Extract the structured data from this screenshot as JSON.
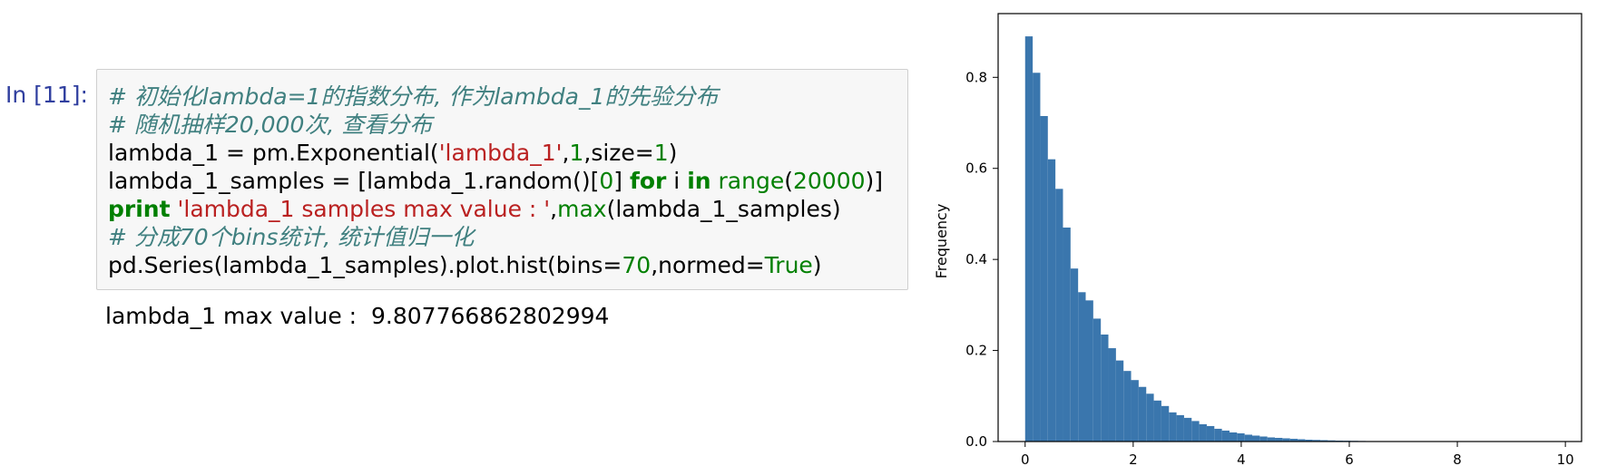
{
  "cell": {
    "prompt": "In [11]:",
    "code_lines": [
      [
        {
          "text": "# 初始化lambda=1的指数分布, 作为lambda_1的先验分布",
          "kind": "comment"
        }
      ],
      [
        {
          "text": "# 随机抽样20,000次, 查看分布",
          "kind": "comment"
        }
      ],
      [
        {
          "text": "lambda_1 = pm.Exponential(",
          "kind": "plain"
        },
        {
          "text": "'lambda_1'",
          "kind": "string"
        },
        {
          "text": ",",
          "kind": "plain"
        },
        {
          "text": "1",
          "kind": "num"
        },
        {
          "text": ",size=",
          "kind": "plain"
        },
        {
          "text": "1",
          "kind": "num"
        },
        {
          "text": ")",
          "kind": "plain"
        }
      ],
      [
        {
          "text": "lambda_1_samples = [lambda_1.random()[",
          "kind": "plain"
        },
        {
          "text": "0",
          "kind": "num"
        },
        {
          "text": "] ",
          "kind": "plain"
        },
        {
          "text": "for",
          "kind": "kw"
        },
        {
          "text": " i ",
          "kind": "plain"
        },
        {
          "text": "in",
          "kind": "kw"
        },
        {
          "text": " ",
          "kind": "plain"
        },
        {
          "text": "range",
          "kind": "builtin"
        },
        {
          "text": "(",
          "kind": "plain"
        },
        {
          "text": "20000",
          "kind": "num"
        },
        {
          "text": ")]",
          "kind": "plain"
        }
      ],
      [
        {
          "text": "print",
          "kind": "kw"
        },
        {
          "text": " ",
          "kind": "plain"
        },
        {
          "text": "'lambda_1 samples max value : '",
          "kind": "string"
        },
        {
          "text": ",",
          "kind": "plain"
        },
        {
          "text": "max",
          "kind": "builtin"
        },
        {
          "text": "(lambda_1_samples)",
          "kind": "plain"
        }
      ],
      [
        {
          "text": "# 分成70个bins统计, 统计值归一化",
          "kind": "comment"
        }
      ],
      [
        {
          "text": "pd.Series(lambda_1_samples).plot.hist(bins=",
          "kind": "plain"
        },
        {
          "text": "70",
          "kind": "num"
        },
        {
          "text": ",normed=",
          "kind": "plain"
        },
        {
          "text": "True",
          "kind": "builtin"
        },
        {
          "text": ")",
          "kind": "plain"
        }
      ]
    ],
    "output": "lambda_1 max value :  9.807766862802994"
  },
  "colors": {
    "prompt": "#303f9f",
    "comment": "#408080",
    "string": "#ba2121",
    "number": "#008000",
    "keyword": "#008000",
    "bar": "#3a76ad"
  },
  "chart_data": {
    "type": "bar",
    "title": "",
    "xlabel": "",
    "ylabel": "Frequency",
    "xlim": [
      -0.5,
      10.3
    ],
    "ylim": [
      0,
      0.94
    ],
    "xticks": [
      0,
      2,
      4,
      6,
      8,
      10
    ],
    "yticks": [
      0.0,
      0.2,
      0.4,
      0.6,
      0.8
    ],
    "ytick_labels": [
      "0.0",
      "0.2",
      "0.4",
      "0.6",
      "0.8"
    ],
    "xtick_labels": [
      "0",
      "2",
      "4",
      "6",
      "8",
      "10"
    ],
    "grid": false,
    "bin_start": 0.0,
    "bin_width": 0.1401,
    "values": [
      0.89,
      0.81,
      0.715,
      0.62,
      0.555,
      0.47,
      0.38,
      0.328,
      0.31,
      0.27,
      0.235,
      0.205,
      0.178,
      0.155,
      0.135,
      0.12,
      0.105,
      0.09,
      0.078,
      0.064,
      0.058,
      0.052,
      0.045,
      0.038,
      0.034,
      0.028,
      0.024,
      0.02,
      0.018,
      0.015,
      0.013,
      0.011,
      0.009,
      0.008,
      0.007,
      0.006,
      0.005,
      0.004,
      0.0035,
      0.003,
      0.0025,
      0.002,
      0.0018,
      0.0015,
      0.0012,
      0.001,
      0.0008,
      0.0007,
      0.0006,
      0.0005,
      0.0004,
      0.0003,
      0.0003,
      0.0002,
      0.0002,
      0.0002,
      0.0001,
      0.0001,
      0.0001,
      0.0001,
      0.0001,
      0.0001,
      0.0001,
      0.0001,
      0.0001,
      0.0001,
      0.0001,
      0.0001,
      0.0001,
      0.0001
    ]
  }
}
